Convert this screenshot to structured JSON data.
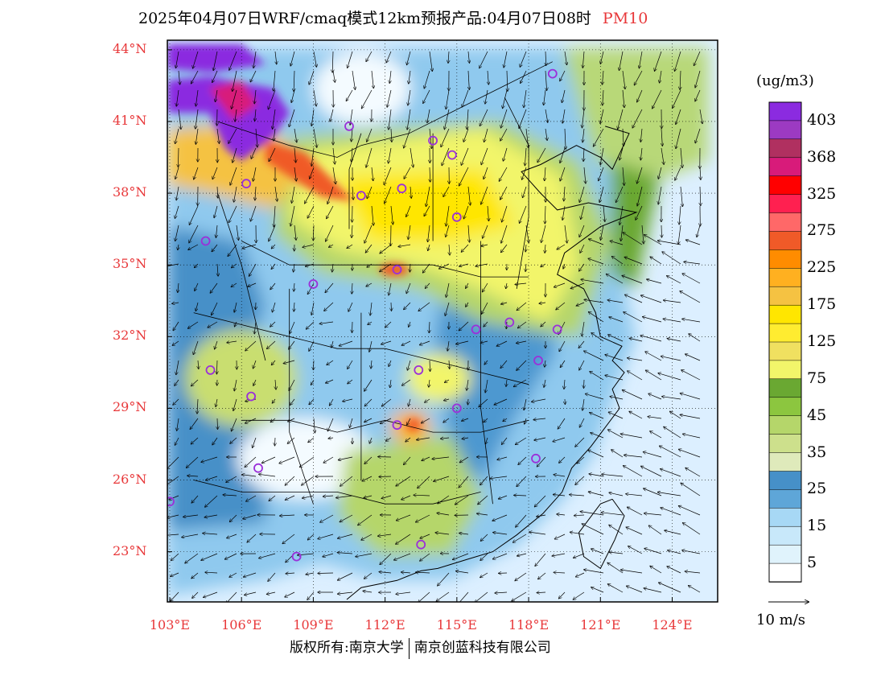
{
  "title": {
    "main": "2025年04月07日WRF/cmaq模式12km预报产品:04月07日08时",
    "variable": "PM10"
  },
  "map": {
    "lat_labels": [
      "44°N",
      "41°N",
      "38°N",
      "35°N",
      "32°N",
      "29°N",
      "26°N",
      "23°N"
    ],
    "lat_values": [
      44,
      41,
      38,
      35,
      32,
      29,
      26,
      23
    ],
    "lon_labels": [
      "103°E",
      "106°E",
      "109°E",
      "112°E",
      "115°E",
      "118°E",
      "121°E",
      "124°E"
    ],
    "lon_values": [
      103,
      106,
      109,
      112,
      115,
      118,
      121,
      124
    ],
    "lon_range": [
      102.9,
      125.9
    ],
    "lat_range": [
      20.9,
      44.4
    ],
    "colors": {
      "ocean": "#dcefff",
      "pollution_high": "#8b2be0"
    },
    "stations": [
      {
        "lon": 119.0,
        "lat": 43.0
      },
      {
        "lon": 110.5,
        "lat": 40.8
      },
      {
        "lon": 114.0,
        "lat": 40.2
      },
      {
        "lon": 114.8,
        "lat": 39.6
      },
      {
        "lon": 106.2,
        "lat": 38.4
      },
      {
        "lon": 111.0,
        "lat": 37.9
      },
      {
        "lon": 112.7,
        "lat": 38.2
      },
      {
        "lon": 115.0,
        "lat": 37.0
      },
      {
        "lon": 104.5,
        "lat": 36.0
      },
      {
        "lon": 112.5,
        "lat": 34.8
      },
      {
        "lon": 109.0,
        "lat": 34.2
      },
      {
        "lon": 115.8,
        "lat": 32.3
      },
      {
        "lon": 117.2,
        "lat": 32.6
      },
      {
        "lon": 119.2,
        "lat": 32.3
      },
      {
        "lon": 118.4,
        "lat": 31.0
      },
      {
        "lon": 104.7,
        "lat": 30.6
      },
      {
        "lon": 113.4,
        "lat": 30.6
      },
      {
        "lon": 106.4,
        "lat": 29.5
      },
      {
        "lon": 115.0,
        "lat": 29.0
      },
      {
        "lon": 112.5,
        "lat": 28.3
      },
      {
        "lon": 106.7,
        "lat": 26.5
      },
      {
        "lon": 118.3,
        "lat": 26.9
      },
      {
        "lon": 103.0,
        "lat": 25.1
      },
      {
        "lon": 108.3,
        "lat": 22.8
      },
      {
        "lon": 113.5,
        "lat": 23.3
      }
    ]
  },
  "colorbar": {
    "unit": "(ug/m3)",
    "labels": [
      "403",
      "368",
      "325",
      "275",
      "225",
      "175",
      "125",
      "75",
      "45",
      "35",
      "25",
      "15",
      "5"
    ],
    "colors": [
      "#8b2be0",
      "#9c3ac2",
      "#b03060",
      "#d81b7a",
      "#ff0000",
      "#ff2050",
      "#ff6868",
      "#f05a28",
      "#ff8c00",
      "#ffb020",
      "#f5c242",
      "#ffe600",
      "#ffec30",
      "#f0e060",
      "#f2f56a",
      "#6aa832",
      "#8cc63f",
      "#b5d66a",
      "#cde08c",
      "#dfeabb",
      "#4690c8",
      "#5ea6d8",
      "#a7d8f5",
      "#c8e8fa",
      "#e0f3fc",
      "#ffffff"
    ]
  },
  "wind_legend": {
    "text": "10 m/s"
  },
  "copyright": {
    "left": "版权所有:南京大学",
    "right": "南京创蓝科技有限公司"
  }
}
